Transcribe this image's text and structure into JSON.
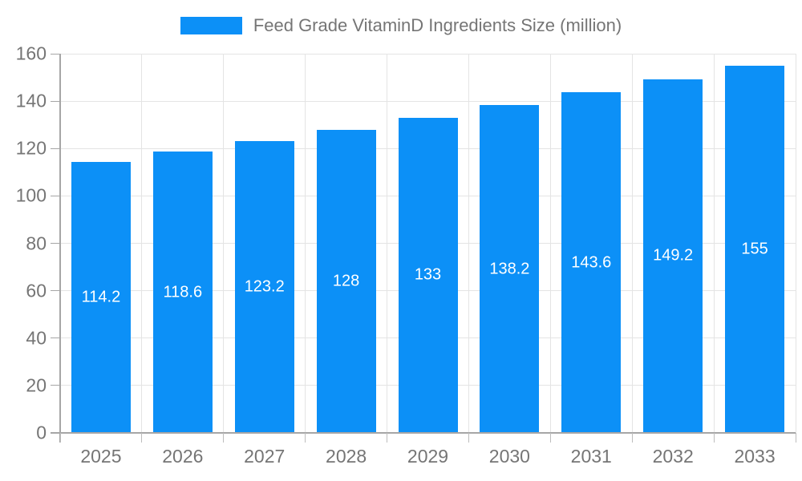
{
  "legend": {
    "label": "Feed Grade VitaminD Ingredients Size (million)"
  },
  "colors": {
    "bar": "#0c90f7",
    "grid": "#e4e4e4",
    "axis": "#a6a6a6",
    "tick": "#bdbdbd",
    "axis_label": "#757575",
    "bar_label": "#ffffff",
    "background": "#ffffff"
  },
  "chart_data": {
    "type": "bar",
    "title": "Feed Grade VitaminD Ingredients Size (million)",
    "series_name": "Feed Grade VitaminD Ingredients Size (million)",
    "categories": [
      "2025",
      "2026",
      "2027",
      "2028",
      "2029",
      "2030",
      "2031",
      "2032",
      "2033"
    ],
    "values": [
      114.2,
      118.6,
      123.2,
      128,
      133,
      138.2,
      143.6,
      149.2,
      155
    ],
    "xlabel": "",
    "ylabel": "",
    "ylim": [
      0,
      160
    ],
    "yticks": [
      0,
      20,
      40,
      60,
      80,
      100,
      120,
      140,
      160
    ],
    "grid": true,
    "grid_vertical": true,
    "legend_position": "top-center",
    "value_labels_position": "inside-center"
  }
}
